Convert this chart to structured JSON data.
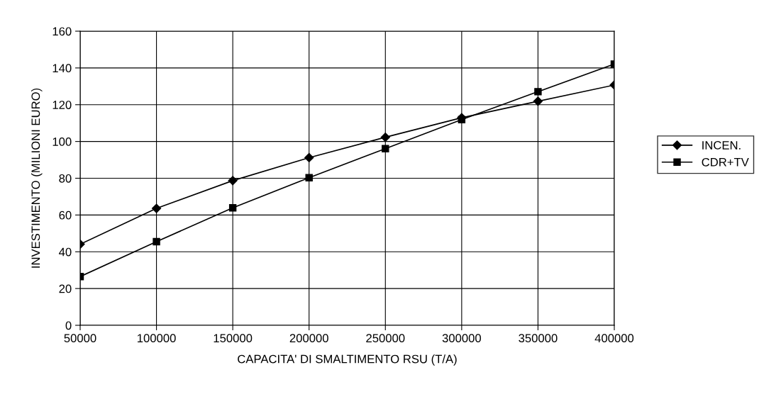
{
  "chart_data": {
    "type": "line",
    "xlabel": "CAPACITA' DI SMALTIMENTO RSU (T/A)",
    "ylabel": "INVESTIMENTO (MILIONI EURO)",
    "x": [
      50000,
      100000,
      150000,
      200000,
      250000,
      300000,
      350000,
      400000
    ],
    "series": [
      {
        "name": "INCEN.",
        "color": "#000000",
        "marker": "diamond",
        "values": [
          44.1,
          63.6,
          78.7,
          91.2,
          102.3,
          112.9,
          121.9,
          130.7
        ]
      },
      {
        "name": "CDR+TV",
        "color": "#000000",
        "marker": "square",
        "values": [
          26.5,
          45.5,
          63.9,
          80.3,
          96.1,
          111.9,
          127.1,
          142.1
        ]
      }
    ],
    "xlim": [
      50000,
      400000
    ],
    "xticks": [
      50000,
      100000,
      150000,
      200000,
      250000,
      300000,
      350000,
      400000
    ],
    "ylim": [
      0,
      160
    ],
    "yticks": [
      0,
      20,
      40,
      60,
      80,
      100,
      120,
      140,
      160
    ],
    "grid": true,
    "legend": "right",
    "line_style": "solid"
  }
}
